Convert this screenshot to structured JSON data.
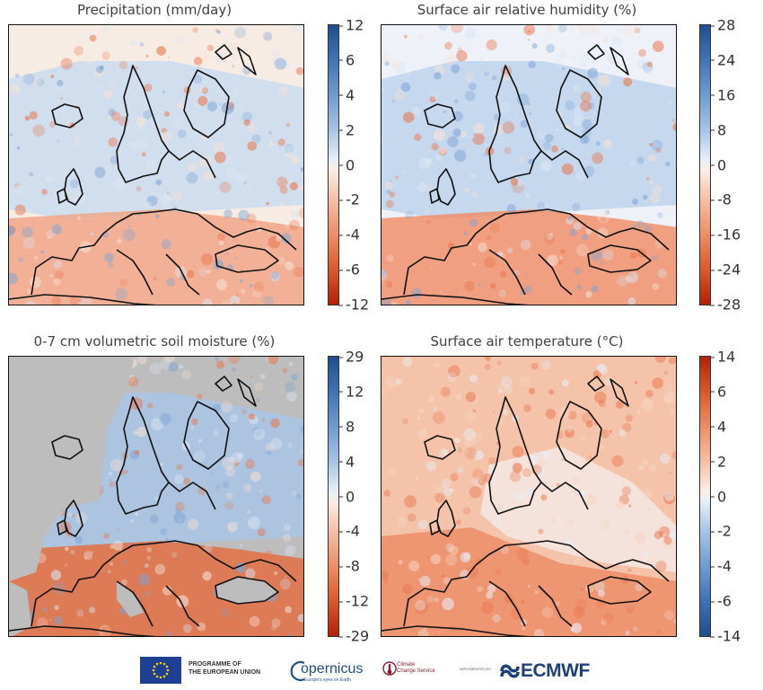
{
  "panels": [
    {
      "title": "Precipitation (mm/day)",
      "colorbar_ticks": [
        "12",
        "6",
        "4",
        "2",
        "0",
        "-2",
        "-4",
        "-6",
        "-12"
      ],
      "colorscale": "diverging-blue-positive",
      "colors": {
        "top": "#1f4e8f",
        "bottom": "#b52007"
      }
    },
    {
      "title": "Surface air relative humidity (%)",
      "colorbar_ticks": [
        "28",
        "24",
        "16",
        "8",
        "0",
        "-8",
        "-16",
        "-24",
        "-28"
      ],
      "colorscale": "diverging-blue-positive",
      "colors": {
        "top": "#1f4e8f",
        "bottom": "#b52007"
      }
    },
    {
      "title": "0-7 cm volumetric soil moisture (%)",
      "colorbar_ticks": [
        "29",
        "12",
        "8",
        "4",
        "0",
        "-4",
        "-8",
        "-12",
        "-29"
      ],
      "colorscale": "diverging-blue-positive",
      "colors": {
        "top": "#1f4e8f",
        "bottom": "#b52007",
        "nodata": "#bdbdbd"
      }
    },
    {
      "title": "Surface air temperature (°C)",
      "colorbar_ticks": [
        "14",
        "6",
        "4",
        "2",
        "0",
        "-2",
        "-4",
        "-6",
        "-14"
      ],
      "colorscale": "diverging-red-positive",
      "colors": {
        "top": "#b52007",
        "bottom": "#1f4e8f"
      }
    }
  ],
  "footer": {
    "eu_text_line1": "PROGRAMME OF",
    "eu_text_line2": "THE EUROPEAN UNION",
    "copernicus": "opernicus",
    "copernicus_tagline": "Europe's eyes on Earth",
    "c3s_line1": "Climate",
    "c3s_line2": "Change Service",
    "implemented_by": "IMPLEMENTED BY",
    "ecmwf": "ECMWF"
  }
}
